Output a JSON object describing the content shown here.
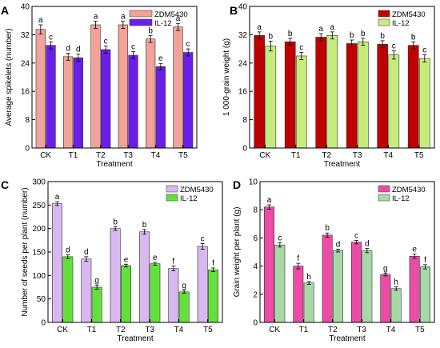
{
  "chart_data": [
    {
      "panel": "A",
      "type": "bar",
      "categories": [
        "CK",
        "T1",
        "T2",
        "T3",
        "T4",
        "T5"
      ],
      "xlabel": "Treatment",
      "ylabel": "Average spikelets (number)",
      "ylim": [
        0,
        40
      ],
      "yticks": [
        0,
        8,
        16,
        24,
        32,
        40
      ],
      "grid": false,
      "legend_position": "top-right",
      "series": [
        {
          "name": "ZDM5430",
          "color": "#f2a298",
          "values": [
            33.5,
            25.8,
            34.8,
            34.8,
            30.8,
            34.2
          ],
          "errors": [
            1.3,
            1.0,
            1.0,
            1.0,
            1.0,
            1.0
          ],
          "letters": [
            "a",
            "d",
            "a",
            "a",
            "b",
            "a"
          ]
        },
        {
          "name": "IL-12",
          "color": "#6b1ee8",
          "values": [
            29.0,
            25.5,
            27.8,
            26.2,
            23.0,
            27.0
          ],
          "errors": [
            1.0,
            1.0,
            1.0,
            1.0,
            0.9,
            1.0
          ],
          "letters": [
            "c",
            "d",
            "c",
            "c",
            "e",
            "c"
          ]
        }
      ]
    },
    {
      "panel": "B",
      "type": "bar",
      "categories": [
        "CK",
        "T1",
        "T2",
        "T3",
        "T4",
        "T5"
      ],
      "xlabel": "Treatment",
      "ylabel": "1 000-grain weight (g)",
      "ylim": [
        0,
        40
      ],
      "yticks": [
        0,
        8,
        16,
        24,
        32,
        40
      ],
      "grid": false,
      "legend_position": "top-right",
      "series": [
        {
          "name": "ZDM5430",
          "color": "#c00000",
          "values": [
            31.8,
            30.0,
            31.3,
            29.5,
            29.3,
            29.0
          ],
          "errors": [
            1.0,
            1.0,
            1.0,
            1.0,
            1.0,
            1.0
          ],
          "letters": [
            "a",
            "b",
            "a",
            "b",
            "b",
            "b"
          ]
        },
        {
          "name": "IL-12",
          "color": "#c5ec7c",
          "values": [
            28.8,
            26.0,
            31.8,
            30.0,
            26.3,
            25.3
          ],
          "errors": [
            1.4,
            1.0,
            1.0,
            1.0,
            1.2,
            1.0
          ],
          "letters": [
            "b",
            "c",
            "a",
            "b",
            "c",
            "c"
          ]
        }
      ]
    },
    {
      "panel": "C",
      "type": "bar",
      "categories": [
        "CK",
        "T1",
        "T2",
        "T3",
        "T4",
        "T5"
      ],
      "xlabel": "Treatment",
      "ylabel": "Number of seeds per plant (number)",
      "ylim": [
        0,
        300
      ],
      "yticks": [
        0,
        50,
        100,
        150,
        200,
        250,
        300
      ],
      "grid": false,
      "legend_position": "top-right",
      "series": [
        {
          "name": "ZDM5430",
          "color": "#d9b8f0",
          "values": [
            253,
            135,
            200,
            193,
            115,
            162
          ],
          "errors": [
            4,
            5,
            4,
            5,
            5,
            6
          ],
          "letters": [
            "a",
            "d",
            "b",
            "b",
            "f",
            "c"
          ]
        },
        {
          "name": "IL-12",
          "color": "#64e03c",
          "values": [
            140,
            75,
            121,
            125,
            65,
            112
          ],
          "errors": [
            4,
            4,
            3,
            3,
            3,
            4
          ],
          "letters": [
            "d",
            "g",
            "e",
            "e",
            "g",
            "f"
          ]
        }
      ]
    },
    {
      "panel": "D",
      "type": "bar",
      "categories": [
        "CK",
        "T1",
        "T2",
        "T3",
        "T4",
        "T5"
      ],
      "xlabel": "Treatment",
      "ylabel": "Grain weight per plant (g)",
      "ylim": [
        0,
        10
      ],
      "yticks": [
        0,
        2,
        4,
        6,
        8,
        10
      ],
      "grid": false,
      "legend_position": "top-right",
      "series": [
        {
          "name": "ZDM5430",
          "color": "#ec4ca4",
          "values": [
            8.2,
            4.0,
            6.2,
            5.7,
            3.4,
            4.7
          ],
          "errors": [
            0.15,
            0.2,
            0.15,
            0.12,
            0.1,
            0.15
          ],
          "letters": [
            "a",
            "f",
            "b",
            "c",
            "g",
            "e"
          ]
        },
        {
          "name": "IL-12",
          "color": "#a8d8a8",
          "values": [
            5.5,
            2.8,
            5.1,
            5.1,
            2.4,
            3.95
          ],
          "errors": [
            0.15,
            0.1,
            0.1,
            0.15,
            0.12,
            0.15
          ],
          "letters": [
            "c",
            "h",
            "d",
            "d",
            "h",
            "f"
          ]
        }
      ]
    }
  ]
}
